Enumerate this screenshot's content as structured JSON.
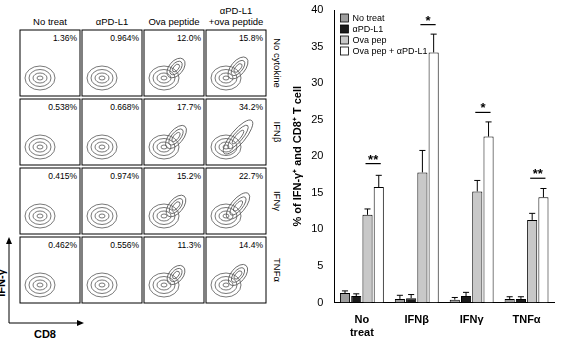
{
  "chart_data": {
    "type": "bar",
    "y_label": "% of IFN-γ⁺ and CD8⁺ T cell",
    "categories": [
      "No treat",
      "IFNβ",
      "IFNγ",
      "TNFα"
    ],
    "series": [
      {
        "name": "No treat",
        "color": "#9e9e9e",
        "values": [
          1.3,
          0.5,
          0.4,
          0.5
        ],
        "errors": [
          0.3,
          0.5,
          0.3,
          0.3
        ]
      },
      {
        "name": "αPD-L1",
        "color": "#1a1a1a",
        "values": [
          0.9,
          0.6,
          0.9,
          0.5
        ],
        "errors": [
          0.3,
          0.5,
          0.5,
          0.3
        ]
      },
      {
        "name": "Ova pep",
        "color": "#c8c8c8",
        "values": [
          12.0,
          17.8,
          15.2,
          11.3
        ],
        "errors": [
          0.8,
          3.0,
          1.5,
          0.9
        ]
      },
      {
        "name": "Ova pep + αPD-L1",
        "color": "#ffffff",
        "values": [
          15.8,
          34.2,
          22.7,
          14.4
        ],
        "errors": [
          1.6,
          2.5,
          2.0,
          1.2
        ]
      }
    ],
    "annotations": [
      {
        "category": "No treat",
        "text": "**",
        "y": 19,
        "between": [
          "Ova pep",
          "Ova pep + αPD-L1"
        ]
      },
      {
        "category": "IFNβ",
        "text": "*",
        "y": 38,
        "between": [
          "Ova pep",
          "Ova pep + αPD-L1"
        ]
      },
      {
        "category": "IFNγ",
        "text": "*",
        "y": 26,
        "between": [
          "Ova pep",
          "Ova pep + αPD-L1"
        ]
      },
      {
        "category": "TNFα",
        "text": "**",
        "y": 17,
        "between": [
          "Ova pep",
          "Ova pep + αPD-L1"
        ]
      }
    ],
    "ylim": [
      0,
      40
    ],
    "yticks": [
      0,
      5,
      10,
      15,
      20,
      25,
      30,
      35,
      40
    ],
    "grid": false,
    "legend": "top-left"
  },
  "flow_panel": {
    "column_labels": [
      "No treat",
      "αPD-L1",
      "Ova peptide",
      "αPD-L1\n+ova peptide"
    ],
    "row_labels": [
      "No cytokine",
      "IFNβ",
      "IFNγ",
      "TNFα"
    ],
    "x_label": "CD8",
    "y_label": "IFN-γ",
    "gates": [
      [
        {
          "value": 1.36,
          "label": "1.36%"
        },
        {
          "value": 0.964,
          "label": "0.964%"
        },
        {
          "value": 12.0,
          "label": "12.0%"
        },
        {
          "value": 15.8,
          "label": "15.8%"
        }
      ],
      [
        {
          "value": 0.538,
          "label": "0.538%"
        },
        {
          "value": 0.668,
          "label": "0.668%"
        },
        {
          "value": 17.7,
          "label": "17.7%"
        },
        {
          "value": 34.2,
          "label": "34.2%"
        }
      ],
      [
        {
          "value": 0.415,
          "label": "0.415%"
        },
        {
          "value": 0.974,
          "label": "0.974%"
        },
        {
          "value": 15.2,
          "label": "15.2%"
        },
        {
          "value": 22.7,
          "label": "22.7%"
        }
      ],
      [
        {
          "value": 0.462,
          "label": "0.462%"
        },
        {
          "value": 0.556,
          "label": "0.556%"
        },
        {
          "value": 11.3,
          "label": "11.3%"
        },
        {
          "value": 14.4,
          "label": "14.4%"
        }
      ]
    ]
  }
}
